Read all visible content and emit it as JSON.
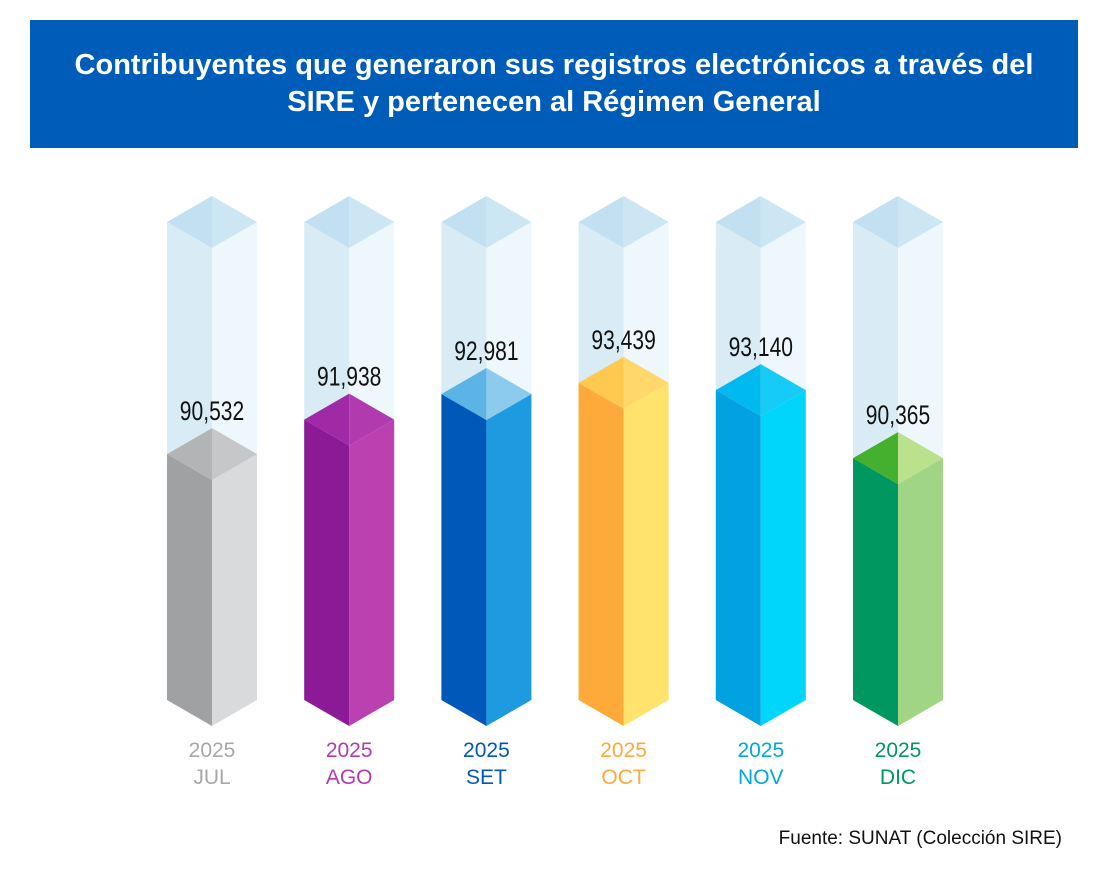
{
  "title": "Contribuyentes que generaron sus registros electrónicos a través del SIRE y pertenecen al Régimen General",
  "source": "Fuente: SUNAT (Colección SIRE)",
  "chart_data": {
    "type": "bar",
    "title": "Contribuyentes que generaron sus registros electrónicos a través del SIRE y pertenecen al Régimen General",
    "categories": [
      "JUL",
      "AGO",
      "SET",
      "OCT",
      "NOV",
      "DIC"
    ],
    "years": [
      "2025",
      "2025",
      "2025",
      "2025",
      "2025",
      "2025"
    ],
    "values": [
      90532,
      91938,
      92981,
      93439,
      93140,
      90365
    ],
    "value_labels": [
      "90,532",
      "91,938",
      "92,981",
      "93,439",
      "93,140",
      "90,365"
    ],
    "ylim": [
      80500,
      100000
    ],
    "xlabel": "",
    "ylabel": "",
    "colors": [
      {
        "front": "#a0a1a3",
        "side": "#d9dadb",
        "top_front": "#b3b4b6",
        "top_side": "#c6c7c9",
        "label": "#a7a8aa"
      },
      {
        "front": "#8c1a97",
        "side": "#bb41b1",
        "top_front": "#a02aa6",
        "top_side": "#b13bae",
        "label": "#b13bae"
      },
      {
        "front": "#0058b8",
        "side": "#1e9ae0",
        "top_front": "#5cb4e6",
        "top_side": "#8ccbed",
        "label": "#0058b8"
      },
      {
        "front": "#fdaa3a",
        "side": "#ffe36d",
        "top_front": "#ffc94f",
        "top_side": "#ffd76a",
        "label": "#fdaa3a"
      },
      {
        "front": "#00a3e0",
        "side": "#00d5fb",
        "top_front": "#00b9ee",
        "top_side": "#16cbf6",
        "label": "#00a7e1"
      },
      {
        "front": "#009760",
        "side": "#a0d585",
        "top_front": "#44b02d",
        "top_side": "#b9e18e",
        "label": "#009760"
      }
    ],
    "ghost_colors": {
      "front": "#d9ecf5",
      "side": "#eef7fb",
      "top_front": "#c2e0f1",
      "top_side": "#cde6f3"
    }
  }
}
